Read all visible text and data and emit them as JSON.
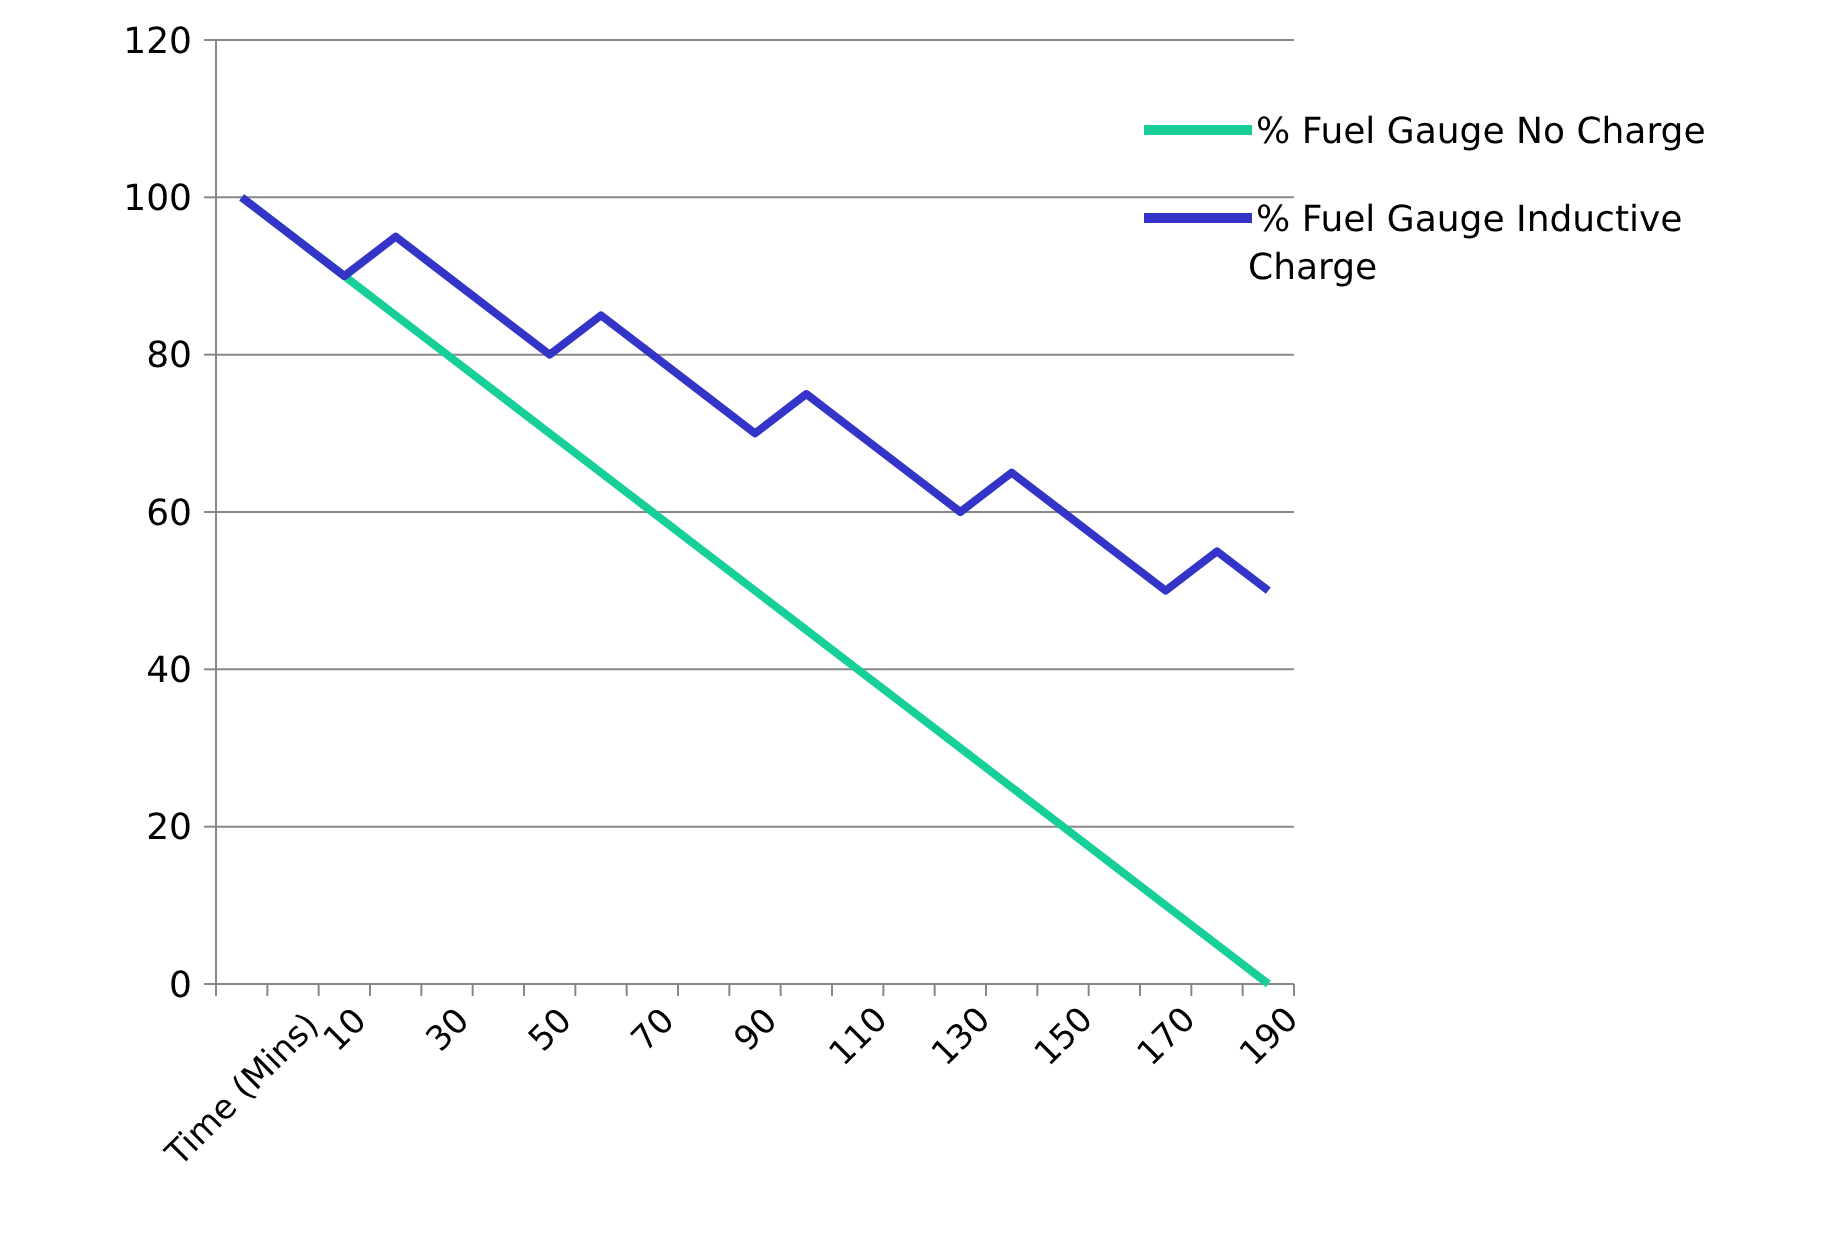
{
  "chart_data": {
    "type": "line",
    "categories": [
      "Time (Mins)",
      null,
      "10",
      null,
      "30",
      null,
      "50",
      null,
      "70",
      null,
      "90",
      null,
      "110",
      null,
      "130",
      null,
      "150",
      null,
      "170",
      null,
      "190"
    ],
    "series": [
      {
        "name": "% Fuel Gauge No Charge",
        "color": "#17cf99",
        "values": [
          100,
          95,
          90,
          85,
          80,
          75,
          70,
          65,
          60,
          55,
          50,
          45,
          40,
          35,
          30,
          25,
          20,
          15,
          10,
          5,
          0
        ]
      },
      {
        "name": "% Fuel Gauge Inductive Charge",
        "color": "#3434c8",
        "values": [
          100,
          95,
          90,
          95,
          90,
          85,
          80,
          85,
          80,
          75,
          70,
          75,
          70,
          65,
          60,
          65,
          60,
          55,
          50,
          55,
          50
        ]
      }
    ],
    "ylim": [
      0,
      120
    ],
    "yticks": [
      0,
      20,
      40,
      60,
      80,
      100,
      120
    ],
    "grid": "y",
    "legend": "top right",
    "marker": "none",
    "line_style": "solid"
  }
}
